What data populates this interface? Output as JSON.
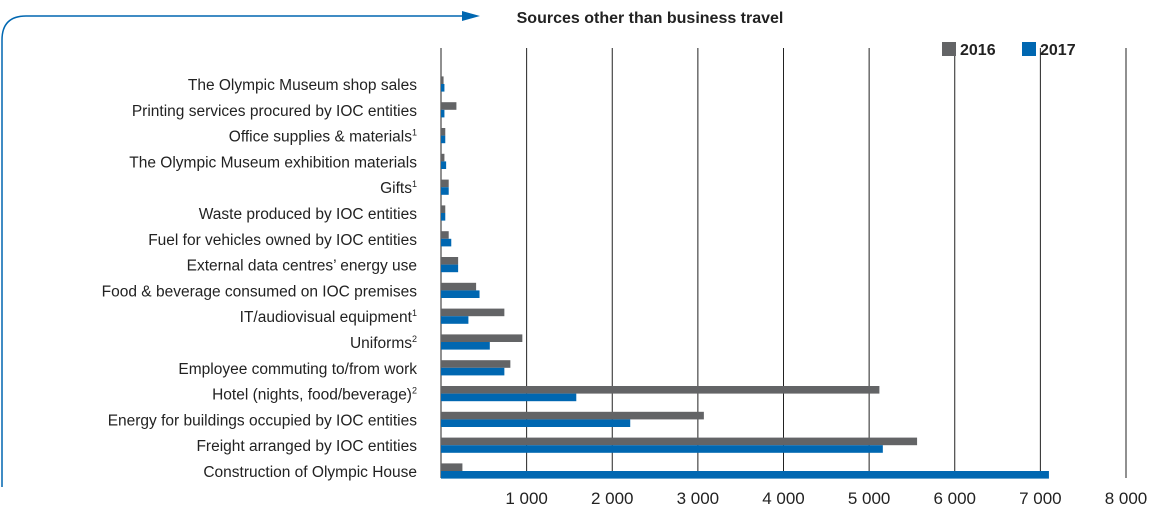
{
  "colors": {
    "series_2016": "#636466",
    "series_2017": "#0067b1",
    "accent_blue": "#0067b1",
    "grid": "#222222",
    "text": "#222222"
  },
  "chart_data": {
    "type": "bar",
    "orientation": "horizontal",
    "title": "Sources other than business travel",
    "xlabel": "",
    "ylabel": "",
    "xlim": [
      0,
      8000
    ],
    "x_ticks": [
      1000,
      2000,
      3000,
      4000,
      5000,
      6000,
      7000,
      8000
    ],
    "x_tick_labels": [
      "1 000",
      "2 000",
      "3 000",
      "4 000",
      "5 000",
      "6 000",
      "7 000",
      "8 000"
    ],
    "grid": true,
    "legend_position": "top-right",
    "categories": [
      {
        "label": "The Olympic Museum shop sales",
        "sup": ""
      },
      {
        "label": "Printing services procured by IOC entities",
        "sup": ""
      },
      {
        "label": "Office supplies & materials",
        "sup": "1"
      },
      {
        "label": "The Olympic Museum exhibition materials",
        "sup": ""
      },
      {
        "label": "Gifts",
        "sup": "1"
      },
      {
        "label": "Waste produced by IOC entities",
        "sup": ""
      },
      {
        "label": "Fuel for vehicles owned by IOC entities",
        "sup": ""
      },
      {
        "label": "External data centres’ energy use",
        "sup": ""
      },
      {
        "label": "Food & beverage consumed on IOC premises",
        "sup": ""
      },
      {
        "label": "IT/audiovisual equipment",
        "sup": "1"
      },
      {
        "label": "Uniforms",
        "sup": "2"
      },
      {
        "label": "Employee commuting to/from work",
        "sup": ""
      },
      {
        "label": "Hotel (nights, food/beverage)",
        "sup": "2"
      },
      {
        "label": "Energy for buildings occupied by IOC entities",
        "sup": ""
      },
      {
        "label": "Freight arranged by IOC entities",
        "sup": ""
      },
      {
        "label": "Construction of Olympic House",
        "sup": ""
      }
    ],
    "series": [
      {
        "name": "2016",
        "color": "#636466",
        "values": [
          30,
          180,
          50,
          40,
          90,
          50,
          90,
          200,
          410,
          740,
          950,
          810,
          5120,
          3070,
          5560,
          250
        ]
      },
      {
        "name": "2017",
        "color": "#0067b1",
        "values": [
          40,
          40,
          50,
          60,
          90,
          50,
          120,
          200,
          450,
          320,
          570,
          740,
          1580,
          2210,
          5160,
          7100
        ]
      }
    ]
  }
}
